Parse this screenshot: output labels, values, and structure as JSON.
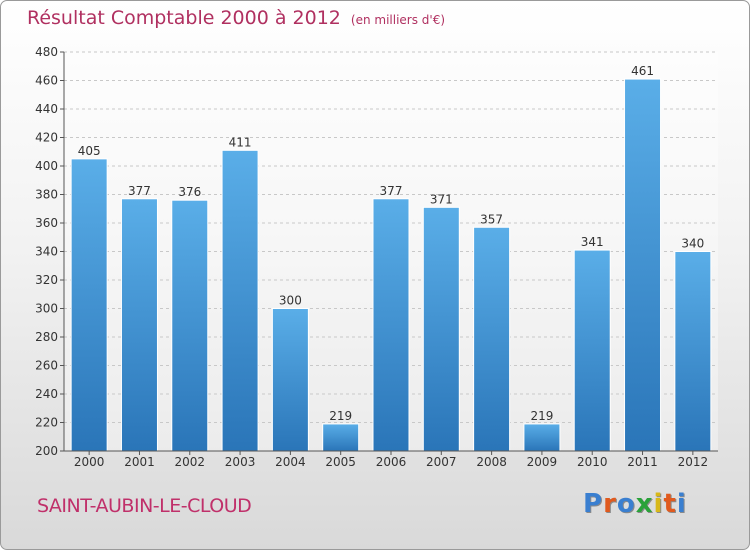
{
  "title": "Résultat Comptable 2000 à 2012",
  "subtitle": "(en milliers d'€)",
  "place": "SAINT-AUBIN-LE-CLOUD",
  "logo": {
    "text": "Proxiti",
    "letter_colors": [
      "#3a7fd0",
      "#e05a1e",
      "#3a7fd0",
      "#2aa23a",
      "#d8b81a",
      "#e05a1e",
      "#3a7fd0"
    ]
  },
  "chart_data": {
    "type": "bar",
    "title": "Résultat Comptable 2000 à 2012",
    "subtitle": "(en milliers d'€)",
    "categories": [
      "2000",
      "2001",
      "2002",
      "2003",
      "2004",
      "2005",
      "2006",
      "2007",
      "2008",
      "2009",
      "2010",
      "2011",
      "2012"
    ],
    "values": [
      405,
      377,
      376,
      411,
      300,
      219,
      377,
      371,
      357,
      219,
      341,
      461,
      340
    ],
    "ylim": [
      200,
      480
    ],
    "yticks": [
      200,
      220,
      240,
      260,
      280,
      300,
      320,
      340,
      360,
      380,
      400,
      420,
      440,
      460,
      480
    ],
    "grid": true,
    "bar_color_top": "#5aaee8",
    "bar_color_bottom": "#2a75b8"
  }
}
